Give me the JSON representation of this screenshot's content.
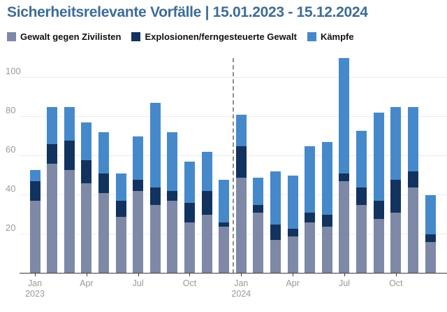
{
  "chart_data": {
    "type": "bar",
    "stacked": true,
    "title": "Sicherheitsrelevante Vorfälle | 15.01.2023 - 15.12.2024",
    "categories": [
      "Jan 2023",
      "Feb 2023",
      "Mar 2023",
      "Apr 2023",
      "May 2023",
      "Jun 2023",
      "Jul 2023",
      "Aug 2023",
      "Sep 2023",
      "Oct 2023",
      "Nov 2023",
      "Dec 2023",
      "Jan 2024",
      "Feb 2024",
      "Mar 2024",
      "Apr 2024",
      "May 2024",
      "Jun 2024",
      "Jul 2024",
      "Aug 2024",
      "Sep 2024",
      "Oct 2024",
      "Nov 2024",
      "Dec 2024"
    ],
    "series": [
      {
        "name": "Gewalt gegen Zivilisten",
        "color": "#7E89A7",
        "values": [
          37,
          56,
          53,
          46,
          41,
          29,
          42,
          35,
          37,
          26,
          30,
          24,
          49,
          31,
          17,
          19,
          26,
          24,
          47,
          35,
          28,
          31,
          44,
          16
        ]
      },
      {
        "name": "Explosionen/ferngesteuerte Gewalt",
        "color": "#12335F",
        "values": [
          10,
          10,
          15,
          12,
          10,
          8,
          6,
          9,
          5,
          10,
          12,
          2,
          16,
          4,
          8,
          4,
          5,
          6,
          4,
          9,
          9,
          17,
          8,
          4
        ]
      },
      {
        "name": "Kämpfe",
        "color": "#4689CB",
        "values": [
          6,
          19,
          17,
          19,
          21,
          14,
          22,
          43,
          30,
          21,
          20,
          22,
          16,
          14,
          27,
          27,
          34,
          37,
          59,
          29,
          45,
          37,
          33,
          20
        ]
      }
    ],
    "totals": [
      53,
      85,
      85,
      77,
      72,
      51,
      70,
      87,
      72,
      57,
      62,
      48,
      81,
      49,
      52,
      50,
      65,
      67,
      110,
      73,
      82,
      85,
      85,
      40
    ],
    "ylim": [
      0,
      110
    ],
    "yticks": [
      20,
      40,
      60,
      80,
      100
    ],
    "xticks": [
      {
        "index": 0,
        "label": "Jan",
        "year": "2023"
      },
      {
        "index": 3,
        "label": "Apr",
        "year": ""
      },
      {
        "index": 6,
        "label": "Jul",
        "year": ""
      },
      {
        "index": 9,
        "label": "Oct",
        "year": ""
      },
      {
        "index": 12,
        "label": "Jan",
        "year": "2024"
      },
      {
        "index": 15,
        "label": "Apr",
        "year": ""
      },
      {
        "index": 18,
        "label": "Jul",
        "year": ""
      },
      {
        "index": 21,
        "label": "Oct",
        "year": ""
      }
    ],
    "divider_after_index": 11,
    "grid": true,
    "legend_position": "top",
    "xlabel": "",
    "ylabel": ""
  },
  "style": {
    "title_color": "#3E6C96",
    "legend_text_color": "#111111",
    "axis_text_color": "#9A9A9A",
    "grid_color": "#ECECEC",
    "axis_line_color": "#3C3C3C",
    "divider_color": "#8C8C8C",
    "background": "#FFFFFF"
  }
}
